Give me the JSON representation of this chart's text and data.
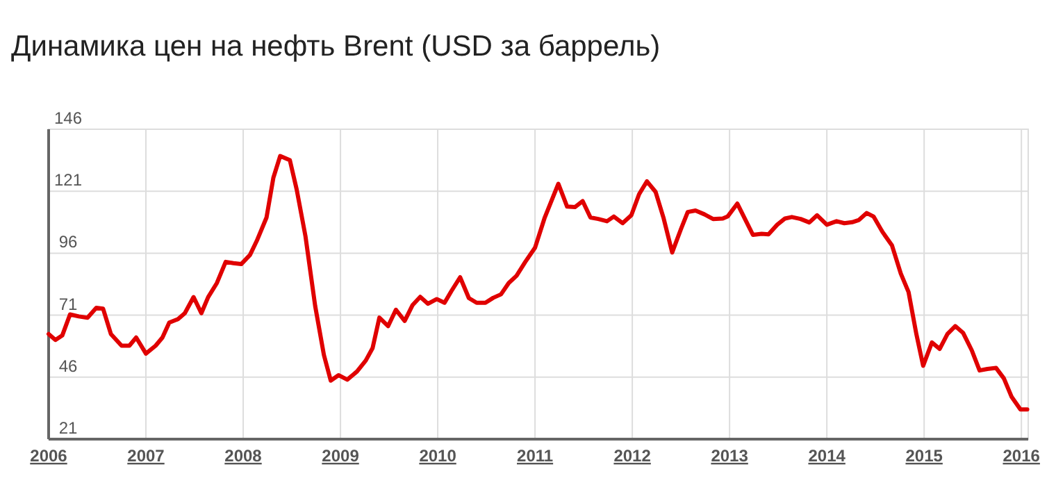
{
  "chart_data": {
    "type": "line",
    "title": "Динамика цен на нефть Brent (USD за баррель)",
    "x": [
      2006.0,
      2006.07,
      2006.14,
      2006.22,
      2006.31,
      2006.4,
      2006.49,
      2006.56,
      2006.64,
      2006.75,
      2006.83,
      2006.9,
      2007.0,
      2007.1,
      2007.17,
      2007.24,
      2007.33,
      2007.4,
      2007.49,
      2007.57,
      2007.64,
      2007.73,
      2007.82,
      2007.9,
      2007.98,
      2008.07,
      2008.14,
      2008.24,
      2008.31,
      2008.38,
      2008.48,
      2008.55,
      2008.64,
      2008.74,
      2008.83,
      2008.9,
      2008.98,
      2009.07,
      2009.17,
      2009.26,
      2009.33,
      2009.4,
      2009.49,
      2009.57,
      2009.66,
      2009.74,
      2009.82,
      2009.9,
      2009.99,
      2010.07,
      2010.14,
      2010.23,
      2010.32,
      2010.4,
      2010.49,
      2010.57,
      2010.65,
      2010.73,
      2010.81,
      2010.9,
      2011.0,
      2011.1,
      2011.24,
      2011.33,
      2011.41,
      2011.49,
      2011.57,
      2011.65,
      2011.74,
      2011.81,
      2011.9,
      2011.99,
      2012.07,
      2012.15,
      2012.24,
      2012.32,
      2012.41,
      2012.5,
      2012.57,
      2012.65,
      2012.74,
      2012.83,
      2012.93,
      2012.98,
      2013.08,
      2013.17,
      2013.24,
      2013.33,
      2013.4,
      2013.49,
      2013.57,
      2013.64,
      2013.73,
      2013.82,
      2013.9,
      2014.0,
      2014.1,
      2014.18,
      2014.26,
      2014.33,
      2014.41,
      2014.48,
      2014.57,
      2014.67,
      2014.76,
      2014.84,
      2014.92,
      2014.99,
      2015.08,
      2015.16,
      2015.24,
      2015.32,
      2015.4,
      2015.49,
      2015.57,
      2015.65,
      2015.74,
      2015.82,
      2015.9,
      2015.99,
      2016.06
    ],
    "series": [
      {
        "color": "#e00000",
        "values": [
          63.4,
          61,
          62.8,
          71.3,
          70.5,
          70,
          74,
          73.6,
          63.4,
          58.7,
          58.7,
          62,
          55.5,
          58.7,
          62,
          68,
          69.4,
          71.8,
          78.3,
          71.8,
          78.3,
          84,
          92.5,
          92,
          91.6,
          95.3,
          101,
          110.4,
          126.4,
          135.2,
          133.5,
          121.7,
          102.9,
          74.7,
          54.9,
          44.6,
          46.8,
          45,
          48.3,
          52.7,
          57.7,
          70,
          66.6,
          73.2,
          68.7,
          75,
          78.4,
          75.6,
          77.5,
          76,
          80.7,
          86.3,
          77.9,
          76,
          76,
          78,
          79.4,
          84,
          86.9,
          92.5,
          98.2,
          110.4,
          124,
          114.8,
          114.6,
          117,
          110.4,
          109.8,
          108.9,
          110.8,
          108.1,
          111.3,
          119.8,
          125,
          120.7,
          110.4,
          96.3,
          105.7,
          112.6,
          113.2,
          111.7,
          109.8,
          110,
          110.8,
          116,
          108.9,
          103.4,
          103.8,
          103.6,
          107.5,
          110,
          110.6,
          109.8,
          108.4,
          111.3,
          107.5,
          108.9,
          108.1,
          108.5,
          109.4,
          112.2,
          110.8,
          104.7,
          99.1,
          87.8,
          80.3,
          63.4,
          50.6,
          60,
          57.4,
          63.4,
          66.6,
          63.9,
          56.8,
          48.7,
          49.3,
          49.7,
          45.5,
          38,
          33,
          33
        ]
      }
    ],
    "xlim": [
      2006,
      2016.07
    ],
    "xticks": [
      2006,
      2007,
      2008,
      2009,
      2010,
      2011,
      2012,
      2013,
      2014,
      2015,
      2016
    ],
    "ylim": [
      21,
      146
    ],
    "yticks": [
      21,
      46,
      71,
      96,
      121,
      146
    ],
    "grid": true,
    "line_style": "solid",
    "marker": "none"
  }
}
